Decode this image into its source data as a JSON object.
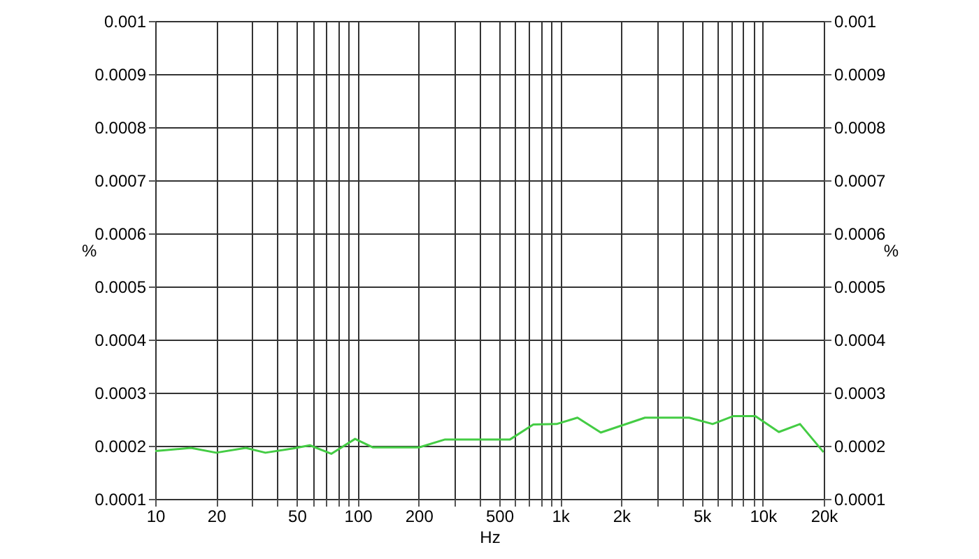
{
  "chart_data": {
    "type": "line",
    "xlabel": "Hz",
    "ylabel": "%",
    "y2label": "%",
    "log": "x",
    "grid": true,
    "x": [
      10,
      15,
      20,
      28,
      35,
      48,
      58,
      74,
      97,
      119,
      201,
      270,
      565,
      736,
      958,
      1216,
      1585,
      2620,
      4330,
      5650,
      7170,
      9190,
      12000,
      15270,
      19950
    ],
    "series": [
      {
        "color": "#44cc44",
        "values": [
          0.00019,
          0.000196,
          0.000187,
          0.000196,
          0.000187,
          0.000195,
          0.000201,
          0.000185,
          0.000213,
          0.000197,
          0.000197,
          0.000212,
          0.000212,
          0.00024,
          0.000241,
          0.000253,
          0.000225,
          0.000253,
          0.000253,
          0.000241,
          0.000256,
          0.000256,
          0.000226,
          0.000241,
          0.000188
        ]
      }
    ],
    "xlim": [
      10,
      20000
    ],
    "xticks": [
      10,
      20,
      {
        "value": 30,
        "label": null
      },
      {
        "value": 40,
        "label": null
      },
      50,
      {
        "value": 60,
        "label": null
      },
      {
        "value": 70,
        "label": null
      },
      {
        "value": 80,
        "label": null
      },
      {
        "value": 90,
        "label": null
      },
      100,
      200,
      {
        "value": 300,
        "label": null
      },
      {
        "value": 400,
        "label": null
      },
      500,
      {
        "value": 600,
        "label": null
      },
      {
        "value": 700,
        "label": null
      },
      {
        "value": 800,
        "label": null
      },
      {
        "value": 900,
        "label": null
      },
      {
        "value": 1000,
        "label": "1k"
      },
      {
        "value": 2000,
        "label": "2k"
      },
      {
        "value": 3000,
        "label": null
      },
      {
        "value": 4000,
        "label": null
      },
      {
        "value": 5000,
        "label": "5k"
      },
      {
        "value": 6000,
        "label": null
      },
      {
        "value": 7000,
        "label": null
      },
      {
        "value": 8000,
        "label": null
      },
      {
        "value": 9000,
        "label": null
      },
      {
        "value": 10000,
        "label": "10k"
      },
      {
        "value": 20000,
        "label": "20k"
      }
    ],
    "ylim": [
      0.0001,
      0.001
    ],
    "yticks": [
      0.0001,
      0.0002,
      0.0003,
      0.0004,
      0.0005,
      0.0006,
      0.0007,
      0.0008,
      0.0009,
      0.001
    ],
    "y2lim": [
      0.0001,
      0.001
    ],
    "y2ticks": [
      0.0001,
      0.0002,
      0.0003,
      0.0004,
      0.0005,
      0.0006,
      0.0007,
      0.0008,
      0.0009,
      0.001
    ]
  }
}
